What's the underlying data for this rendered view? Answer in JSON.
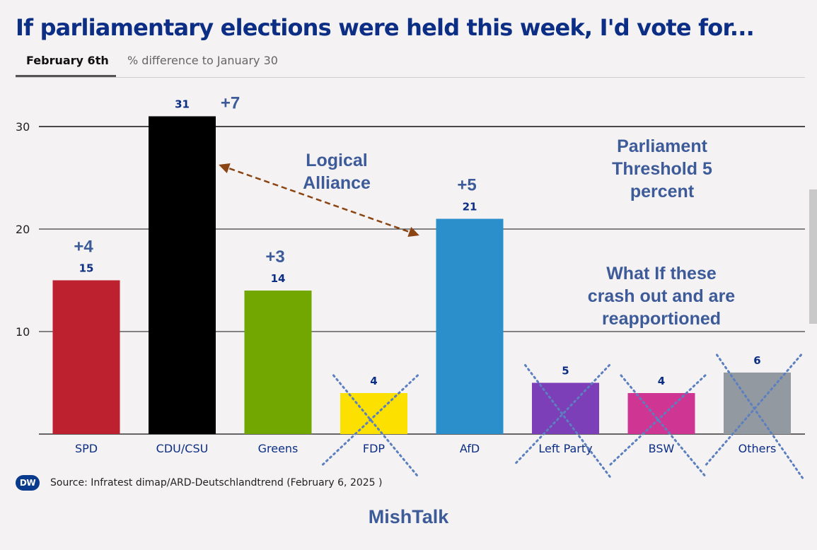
{
  "title": "If parliamentary elections were held this week, I'd vote for...",
  "tabs": {
    "active": "February 6th",
    "inactive": "% difference to January 30"
  },
  "chart_data": {
    "type": "bar",
    "categories": [
      "SPD",
      "CDU/CSU",
      "Greens",
      "FDP",
      "AfD",
      "Left Party",
      "BSW",
      "Others"
    ],
    "values": [
      15,
      31,
      14,
      4,
      21,
      5,
      4,
      6
    ],
    "changes": [
      "+4",
      "+7",
      "+3",
      "",
      "+5",
      "",
      "",
      ""
    ],
    "colors": [
      "#bd202e",
      "#000000",
      "#72a600",
      "#fce100",
      "#2b8fcc",
      "#7c3fb8",
      "#cf3592",
      "#9299a1"
    ],
    "crossed_out": [
      "FDP",
      "Left Party",
      "BSW",
      "Others"
    ],
    "ylim": [
      0,
      30
    ],
    "yticks": [
      10,
      20,
      30
    ],
    "grid": true,
    "annotations": {
      "alliance": [
        "Logical",
        "Alliance"
      ],
      "threshold": [
        "Parliament",
        "Threshold 5",
        "percent"
      ],
      "question": [
        "What If these",
        "crash out and are",
        "reapportioned"
      ]
    }
  },
  "source": "Source: Infratest dimap/ARD-Deutschlandtrend (February 6, 2025 )",
  "logo": "DW",
  "footer_brand": "MishTalk",
  "accent_color": "#0c2e85",
  "annotation_color": "#3d5a99"
}
